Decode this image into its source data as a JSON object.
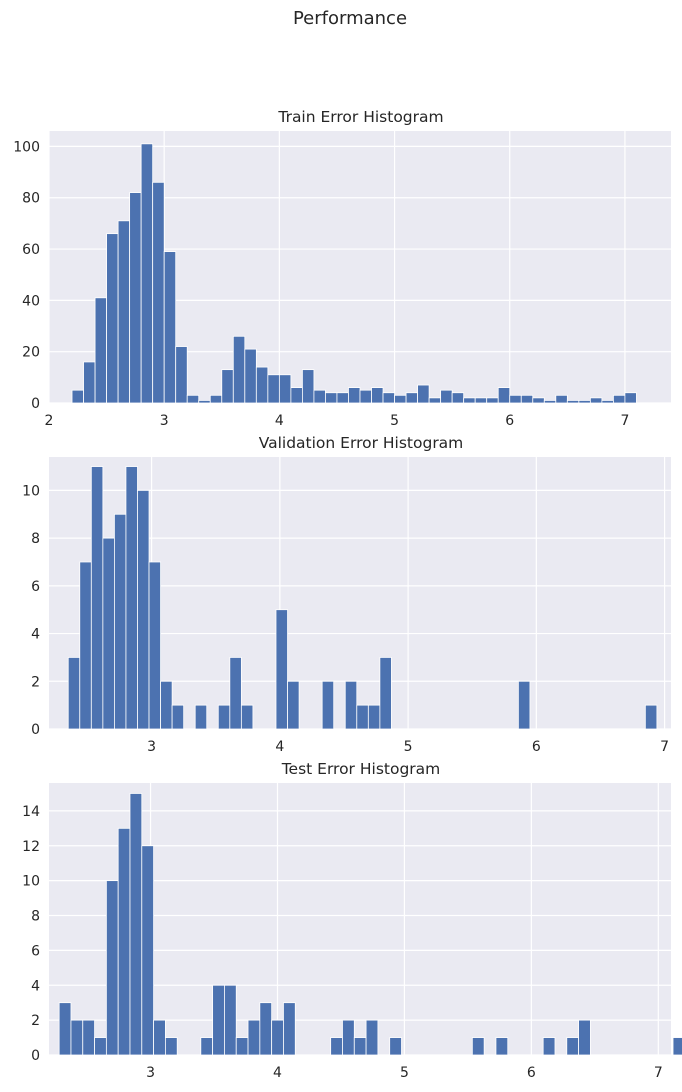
{
  "figure": {
    "title": "Performance"
  },
  "chart_data": [
    {
      "type": "bar",
      "title": "Train Error Histogram",
      "xlabel": "",
      "ylabel": "",
      "xlim": [
        2.0,
        7.4
      ],
      "ylim": [
        0,
        106
      ],
      "xticks": [
        2,
        3,
        4,
        5,
        6,
        7
      ],
      "yticks": [
        0,
        20,
        40,
        60,
        80,
        100
      ],
      "bin_edges_start": 2.2,
      "bin_width": 0.1,
      "values": [
        5,
        16,
        41,
        66,
        71,
        82,
        101,
        86,
        59,
        22,
        3,
        1,
        3,
        13,
        26,
        21,
        14,
        11,
        11,
        6,
        13,
        5,
        4,
        4,
        6,
        5,
        6,
        4,
        3,
        4,
        7,
        2,
        5,
        4,
        2,
        2,
        2,
        6,
        3,
        3,
        2,
        1,
        3,
        1,
        1,
        2,
        1,
        3,
        4
      ],
      "grid": true,
      "bar_color": "#4c72b0",
      "background_color": "#eaeaf2"
    },
    {
      "type": "bar",
      "title": "Validation Error Histogram",
      "xlabel": "",
      "ylabel": "",
      "xlim": [
        2.2,
        7.05
      ],
      "ylim": [
        0,
        11.4
      ],
      "xticks": [
        3,
        4,
        5,
        6,
        7
      ],
      "yticks": [
        0,
        2,
        4,
        6,
        8,
        10
      ],
      "bin_edges_start": 2.35,
      "bin_width": 0.09,
      "values": [
        3,
        7,
        11,
        8,
        9,
        11,
        10,
        7,
        2,
        1,
        0,
        1,
        0,
        1,
        3,
        1,
        0,
        0,
        5,
        2,
        0,
        0,
        2,
        0,
        2,
        1,
        1,
        3,
        0,
        0,
        0,
        0,
        0,
        0,
        0,
        0,
        0,
        0,
        0,
        2,
        0,
        0,
        0,
        0,
        0,
        0,
        0,
        0,
        0,
        0,
        1,
        0,
        0,
        0,
        0,
        0,
        0,
        0,
        1,
        0,
        0,
        1
      ],
      "grid": true,
      "bar_color": "#4c72b0",
      "background_color": "#eaeaf2"
    },
    {
      "type": "bar",
      "title": "Test Error Histogram",
      "xlabel": "",
      "ylabel": "",
      "xlim": [
        2.2,
        7.1
      ],
      "ylim": [
        0,
        15.6
      ],
      "xticks": [
        3,
        4,
        5,
        6,
        7
      ],
      "yticks": [
        0,
        2,
        4,
        6,
        8,
        10,
        12,
        14
      ],
      "bin_edges_start": 2.28,
      "bin_width": 0.093,
      "values": [
        3,
        2,
        2,
        1,
        10,
        13,
        15,
        12,
        2,
        1,
        0,
        0,
        1,
        4,
        4,
        1,
        2,
        3,
        2,
        3,
        0,
        0,
        0,
        1,
        2,
        1,
        2,
        0,
        1,
        0,
        0,
        0,
        0,
        0,
        0,
        1,
        0,
        1,
        0,
        0,
        0,
        1,
        0,
        1,
        2,
        0,
        0,
        0,
        0,
        0,
        0,
        0,
        1
      ],
      "grid": true,
      "bar_color": "#4c72b0",
      "background_color": "#eaeaf2"
    }
  ]
}
